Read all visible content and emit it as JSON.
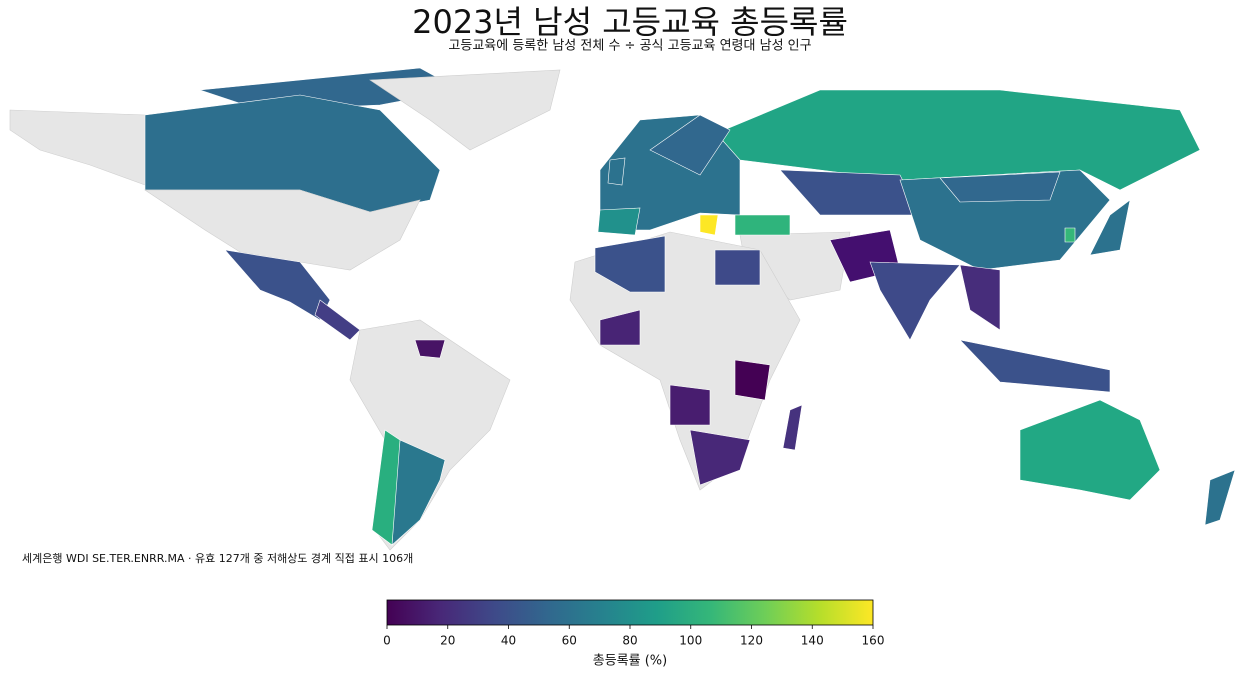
{
  "chart_data": {
    "type": "choropleth",
    "title": "2023년 남성 고등교육 총등록률",
    "subtitle": "고등교육에 등록한 남성 전체 수 ÷ 공식 고등교육 연령대 남성 인구",
    "note": "세계은행 WDI SE.TER.ENRR.MA · 유효 127개 중 저해상도 경계 직접 표시 106개",
    "colorbar": {
      "label": "총등록률 (%)",
      "colormap": "viridis",
      "lim": [
        0,
        160
      ],
      "ticks": [
        0,
        20,
        40,
        60,
        80,
        100,
        120,
        140,
        160
      ]
    }
  }
}
